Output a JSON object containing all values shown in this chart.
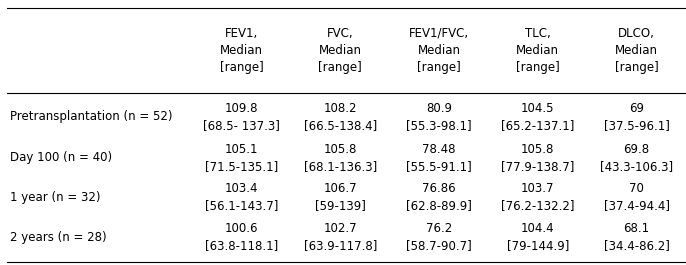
{
  "col_headers": [
    "FEV1,\nMedian\n[range]",
    "FVC,\nMedian\n[range]",
    "FEV1/FVC,\nMedian\n[range]",
    "TLC,\nMedian\n[range]",
    "DLCO,\nMedian\n[range]"
  ],
  "row_labels": [
    "Pretransplantation (n = 52)",
    "Day 100 (n = 40)",
    "1 year (n = 32)",
    "2 years (n = 28)"
  ],
  "cell_data": [
    [
      "109.8\n[68.5- 137.3]",
      "108.2\n[66.5-138.4]",
      "80.9\n[55.3-98.1]",
      "104.5\n[65.2-137.1]",
      "69\n[37.5-96.1]"
    ],
    [
      "105.1\n[71.5-135.1]",
      "105.8\n[68.1-136.3]",
      "78.48\n[55.5-91.1]",
      "105.8\n[77.9-138.7]",
      "69.8\n[43.3-106.3]"
    ],
    [
      "103.4\n[56.1-143.7]",
      "106.7\n[59-139]",
      "76.86\n[62.8-89.9]",
      "103.7\n[76.2-132.2]",
      "70\n[37.4-94.4]"
    ],
    [
      "100.6\n[63.8-118.1]",
      "102.7\n[63.9-117.8]",
      "76.2\n[58.7-90.7]",
      "104.4\n[79-144.9]",
      "68.1\n[34.4-86.2]"
    ]
  ],
  "background_color": "#ffffff",
  "text_color": "#000000",
  "header_fontsize": 8.5,
  "cell_fontsize": 8.5,
  "row_label_fontsize": 8.5
}
